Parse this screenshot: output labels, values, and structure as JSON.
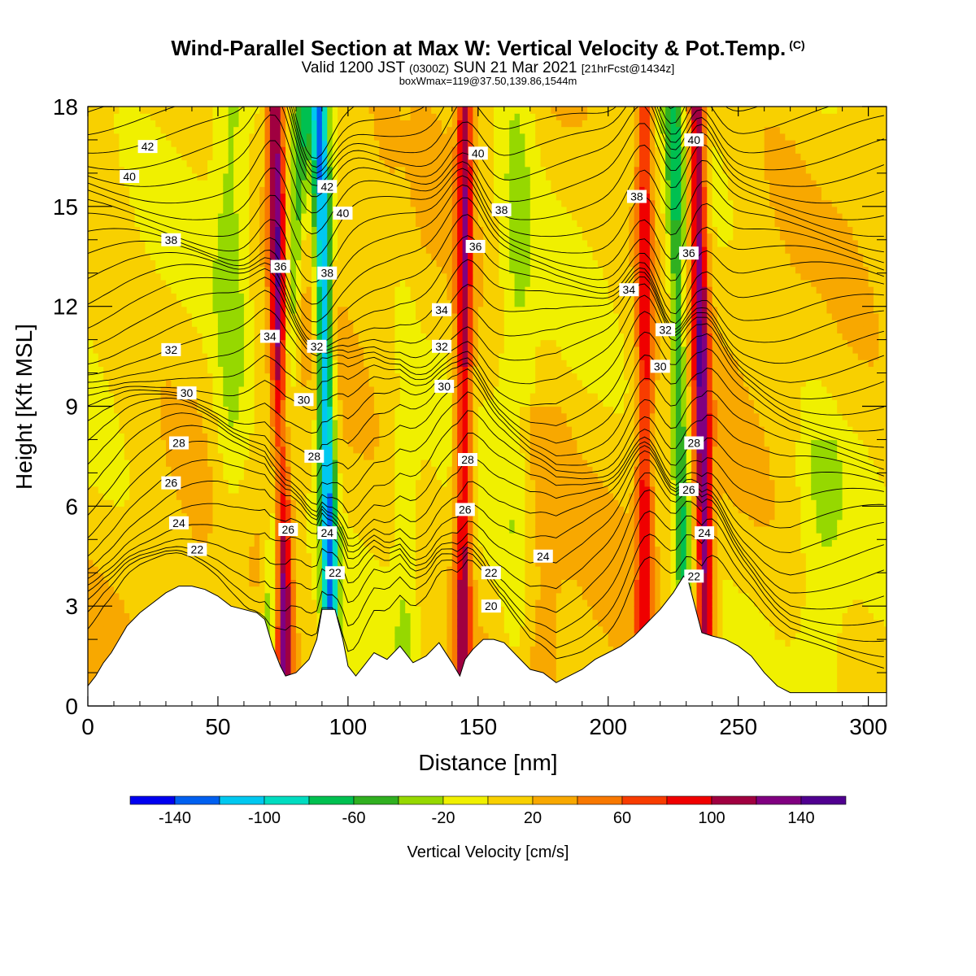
{
  "title": "Wind-Parallel Section at Max W: Vertical Velocity & Pot.Temp.",
  "copyright": "(C)",
  "subtitle_main": "Valid 1200 JST ",
  "subtitle_small1": "(0300Z)",
  "subtitle_main2": " SUN 21 Mar 2021 ",
  "subtitle_small2": "[21hrFcst@1434z]",
  "subtitle2": "boxWmax=119@37.50,139.86,1544m",
  "chart_data": {
    "type": "heatmap",
    "xlabel": "Distance [nm]",
    "ylabel": "Height [Kft MSL]",
    "xlim": [
      0,
      307
    ],
    "ylim": [
      0,
      18
    ],
    "x_ticks": [
      0,
      50,
      100,
      150,
      200,
      250,
      300
    ],
    "y_ticks": [
      0,
      3,
      6,
      9,
      12,
      15,
      18
    ],
    "colorbar": {
      "label": "Vertical Velocity [cm/s]",
      "range": [
        -160,
        160
      ],
      "step": 20,
      "tick_labels": [
        -140,
        -100,
        -60,
        -20,
        20,
        60,
        100,
        140
      ],
      "colors": [
        "#0000f0",
        "#0060f0",
        "#00c8f0",
        "#00dcc0",
        "#00c050",
        "#30b020",
        "#96d800",
        "#f0f000",
        "#f8d000",
        "#f8a800",
        "#f87800",
        "#f83c00",
        "#f00000",
        "#a00040",
        "#800080",
        "#500090"
      ]
    },
    "updraft_bands": [
      {
        "x_base": 76,
        "x_top": 72,
        "peak": 120
      },
      {
        "x_base": 144,
        "x_top": 145,
        "peak": 100
      },
      {
        "x_base": 214,
        "x_top": 214,
        "peak": 80
      },
      {
        "x_base": 238,
        "x_top": 234,
        "peak": 120
      }
    ],
    "downdraft_bands": [
      {
        "x_base": 68,
        "x_top": 83,
        "peak": -60
      },
      {
        "x_base": 94,
        "x_top": 89,
        "peak": -130
      },
      {
        "x_base": 230,
        "x_top": 225,
        "peak": -70
      }
    ],
    "terrain_profile": {
      "x": [
        0,
        3,
        6,
        9,
        12,
        15,
        20,
        25,
        30,
        35,
        40,
        45,
        50,
        55,
        60,
        65,
        68,
        71,
        74,
        76,
        80,
        85,
        88,
        90,
        95,
        98,
        100,
        103,
        106,
        110,
        115,
        120,
        125,
        130,
        135,
        140,
        143,
        145,
        148,
        152,
        156,
        160,
        165,
        170,
        175,
        180,
        185,
        190,
        195,
        200,
        205,
        210,
        215,
        220,
        225,
        229,
        231,
        234,
        236,
        240,
        245,
        250,
        255,
        260,
        265,
        270,
        307
      ],
      "y": [
        0.6,
        0.9,
        1.3,
        1.6,
        2.0,
        2.4,
        2.8,
        3.1,
        3.4,
        3.6,
        3.6,
        3.5,
        3.3,
        3.0,
        2.9,
        2.8,
        2.6,
        1.8,
        1.2,
        0.9,
        1.0,
        1.4,
        2.0,
        2.9,
        2.9,
        2.0,
        1.2,
        0.9,
        1.2,
        1.6,
        1.4,
        1.8,
        1.3,
        1.5,
        1.9,
        1.3,
        0.9,
        1.4,
        1.7,
        2.0,
        2.0,
        1.9,
        1.5,
        1.1,
        1.0,
        0.7,
        0.9,
        1.1,
        1.4,
        1.6,
        1.8,
        2.1,
        2.5,
        2.9,
        3.4,
        3.9,
        3.7,
        2.8,
        2.2,
        2.1,
        2.0,
        1.8,
        1.5,
        1.0,
        0.6,
        0.4,
        0.4
      ]
    },
    "theta_contours": {
      "levels": [
        20,
        22,
        24,
        26,
        28,
        30,
        32,
        34,
        36,
        38,
        40,
        42
      ],
      "spacing": 0.5,
      "labels": [
        {
          "text": "42",
          "x": 23,
          "y": 16.8
        },
        {
          "text": "40",
          "x": 16,
          "y": 15.9
        },
        {
          "text": "38",
          "x": 32,
          "y": 14.0
        },
        {
          "text": "32",
          "x": 32,
          "y": 10.7
        },
        {
          "text": "30",
          "x": 38,
          "y": 9.4
        },
        {
          "text": "28",
          "x": 35,
          "y": 7.9
        },
        {
          "text": "26",
          "x": 32,
          "y": 6.7
        },
        {
          "text": "24",
          "x": 35,
          "y": 5.5
        },
        {
          "text": "22",
          "x": 42,
          "y": 4.7
        },
        {
          "text": "36",
          "x": 74,
          "y": 13.2
        },
        {
          "text": "34",
          "x": 70,
          "y": 11.1
        },
        {
          "text": "30",
          "x": 83,
          "y": 9.2
        },
        {
          "text": "28",
          "x": 87,
          "y": 7.5
        },
        {
          "text": "26",
          "x": 77,
          "y": 5.3
        },
        {
          "text": "42",
          "x": 92,
          "y": 15.6
        },
        {
          "text": "38",
          "x": 92,
          "y": 13.0
        },
        {
          "text": "32",
          "x": 88,
          "y": 10.8
        },
        {
          "text": "24",
          "x": 92,
          "y": 5.2
        },
        {
          "text": "22",
          "x": 95,
          "y": 4.0
        },
        {
          "text": "40",
          "x": 98,
          "y": 14.8
        },
        {
          "text": "40",
          "x": 150,
          "y": 16.6
        },
        {
          "text": "38",
          "x": 159,
          "y": 14.9
        },
        {
          "text": "36",
          "x": 149,
          "y": 13.8
        },
        {
          "text": "34",
          "x": 136,
          "y": 11.9
        },
        {
          "text": "32",
          "x": 136,
          "y": 10.8
        },
        {
          "text": "30",
          "x": 137,
          "y": 9.6
        },
        {
          "text": "28",
          "x": 146,
          "y": 7.4
        },
        {
          "text": "26",
          "x": 145,
          "y": 5.9
        },
        {
          "text": "22",
          "x": 155,
          "y": 4.0
        },
        {
          "text": "20",
          "x": 155,
          "y": 3.0
        },
        {
          "text": "24",
          "x": 175,
          "y": 4.5
        },
        {
          "text": "38",
          "x": 211,
          "y": 15.3
        },
        {
          "text": "34",
          "x": 208,
          "y": 12.5
        },
        {
          "text": "32",
          "x": 222,
          "y": 11.3
        },
        {
          "text": "30",
          "x": 220,
          "y": 10.2
        },
        {
          "text": "40",
          "x": 233,
          "y": 17.0
        },
        {
          "text": "36",
          "x": 231,
          "y": 13.6
        },
        {
          "text": "28",
          "x": 233,
          "y": 7.9
        },
        {
          "text": "26",
          "x": 231,
          "y": 6.5
        },
        {
          "text": "24",
          "x": 237,
          "y": 5.2
        },
        {
          "text": "22",
          "x": 233,
          "y": 3.9
        }
      ]
    }
  }
}
